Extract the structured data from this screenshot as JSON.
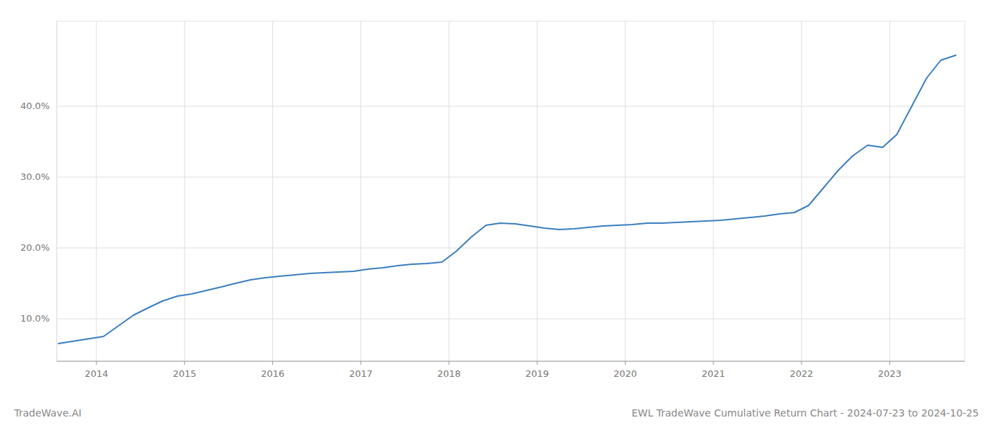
{
  "chart_data": {
    "type": "line",
    "title": "EWL TradeWave Cumulative Return Chart - 2024-07-23 to 2024-10-25",
    "annotations": [
      "TradeWave.AI"
    ],
    "color": "#3a7ebf",
    "grid": true,
    "x": [
      2013.57,
      2014.08,
      2014.25,
      2014.42,
      2014.58,
      2014.75,
      2014.92,
      2015.08,
      2015.25,
      2015.42,
      2015.58,
      2015.75,
      2015.92,
      2016.08,
      2016.25,
      2016.42,
      2016.58,
      2016.75,
      2016.92,
      2017.08,
      2017.25,
      2017.42,
      2017.58,
      2017.75,
      2017.92,
      2018.08,
      2018.25,
      2018.42,
      2018.58,
      2018.75,
      2018.92,
      2019.08,
      2019.25,
      2019.42,
      2019.58,
      2019.75,
      2019.92,
      2020.08,
      2020.25,
      2020.42,
      2020.58,
      2020.75,
      2020.92,
      2021.08,
      2021.25,
      2021.42,
      2021.58,
      2021.75,
      2021.92,
      2022.08,
      2022.25,
      2022.42,
      2022.58,
      2022.75,
      2022.92,
      2023.08,
      2023.25,
      2023.42,
      2023.58,
      2023.75
    ],
    "values": [
      6.5,
      7.5,
      9.0,
      10.5,
      11.5,
      12.5,
      13.2,
      13.5,
      14.0,
      14.5,
      15.0,
      15.5,
      15.8,
      16.0,
      16.2,
      16.4,
      16.5,
      16.6,
      16.7,
      17.0,
      17.2,
      17.5,
      17.7,
      17.8,
      18.0,
      19.5,
      21.5,
      23.2,
      23.5,
      23.4,
      23.1,
      22.8,
      22.6,
      22.7,
      22.9,
      23.1,
      23.2,
      23.3,
      23.5,
      23.5,
      23.6,
      23.7,
      23.8,
      23.9,
      24.1,
      24.3,
      24.5,
      24.8,
      25.0,
      26.0,
      28.5,
      31.0,
      33.0,
      34.5,
      34.2,
      36.0,
      40.0,
      44.0,
      46.5,
      47.2
    ],
    "xlim": [
      2013.55,
      2023.85
    ],
    "ylim": [
      4,
      52
    ],
    "xticks": [
      2014,
      2015,
      2016,
      2017,
      2018,
      2019,
      2020,
      2021,
      2022,
      2023
    ],
    "yticks": [
      {
        "value": 10.0,
        "label": "10.0%"
      },
      {
        "value": 20.0,
        "label": "20.0%"
      },
      {
        "value": 30.0,
        "label": "30.0%"
      },
      {
        "value": 40.0,
        "label": "40.0%"
      }
    ]
  }
}
